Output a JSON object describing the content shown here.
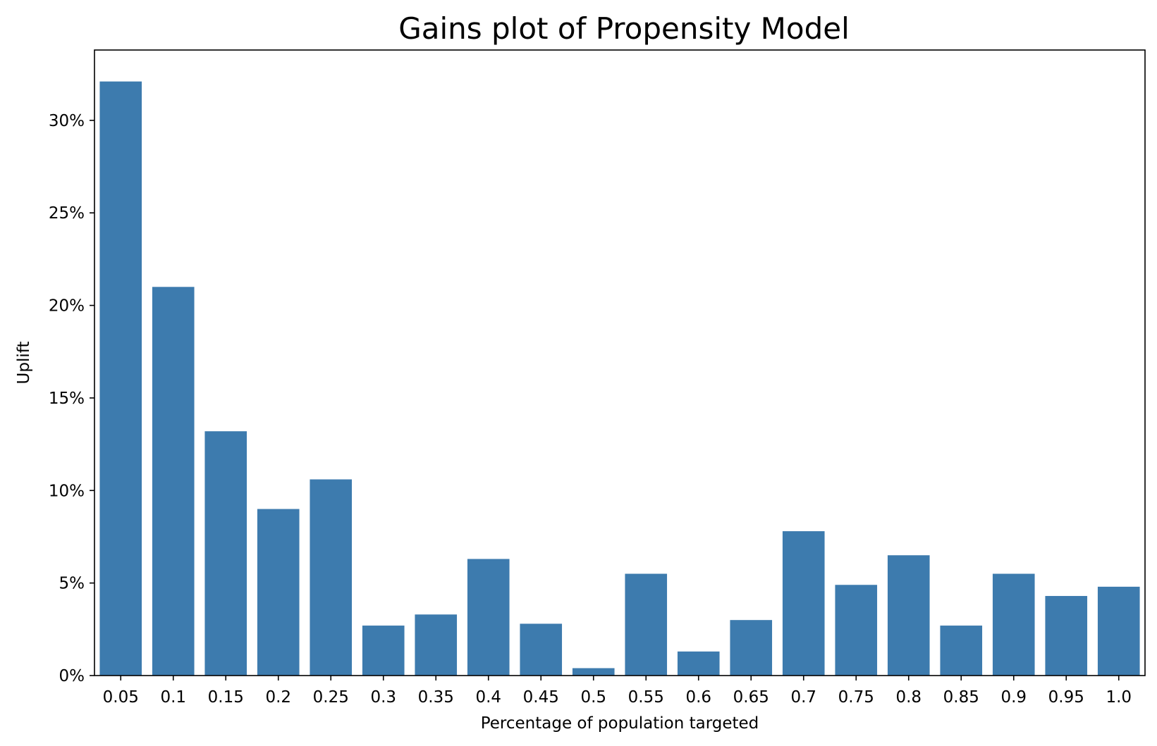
{
  "chart_data": {
    "type": "bar",
    "title": "Gains plot of Propensity Model",
    "xlabel": "Percentage of population targeted",
    "ylabel": "Uplift",
    "categories": [
      "0.05",
      "0.1",
      "0.15",
      "0.2",
      "0.25",
      "0.3",
      "0.35",
      "0.4",
      "0.45",
      "0.5",
      "0.55",
      "0.6",
      "0.65",
      "0.7",
      "0.75",
      "0.8",
      "0.85",
      "0.9",
      "0.95",
      "1.0"
    ],
    "values": [
      32.1,
      21.0,
      13.2,
      9.0,
      10.6,
      2.7,
      3.3,
      6.3,
      2.8,
      0.4,
      5.5,
      1.3,
      3.0,
      7.8,
      4.9,
      6.5,
      2.7,
      5.5,
      4.3,
      4.8
    ],
    "ylim": [
      0,
      33.8
    ],
    "yticks": [
      0,
      5,
      10,
      15,
      20,
      25,
      30
    ],
    "ytick_labels": [
      "0%",
      "5%",
      "10%",
      "15%",
      "20%",
      "25%",
      "30%"
    ],
    "bar_color": "#3d7bae",
    "grid": false,
    "legend": "none"
  }
}
